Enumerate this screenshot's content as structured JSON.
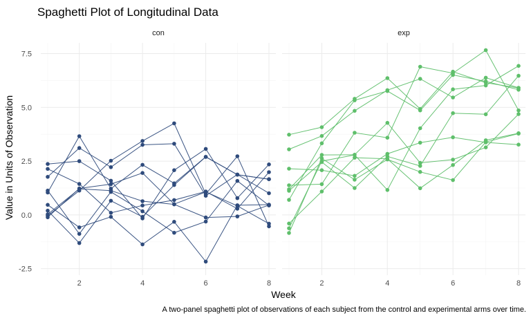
{
  "chart_data": {
    "type": "line",
    "title": "Spaghetti Plot of Longitudinal Data",
    "xlabel": "Week",
    "ylabel": "Value in Units of Observation",
    "caption": "A two-panel spaghetti plot of observations of each subject from the control and experimental arms over time.",
    "x": [
      1,
      2,
      3,
      4,
      5,
      6,
      7,
      8
    ],
    "xlim": [
      1,
      8
    ],
    "ylim": [
      -2.8,
      8
    ],
    "xticks": [
      "2",
      "4",
      "6",
      "8"
    ],
    "yticks": [
      "-2.5",
      "0.0",
      "2.5",
      "5.0",
      "7.5"
    ],
    "grid": true,
    "panels": [
      {
        "label": "con",
        "color": "#2f4b7c",
        "series": [
          {
            "values": [
              0.2,
              -1.31,
              0.66,
              -0.09,
              1.39,
              2.7,
              1.87,
              1.66
            ]
          },
          {
            "values": [
              1.13,
              -0.88,
              1.07,
              0.17,
              -0.83,
              -0.31,
              1.58,
              0.44
            ]
          },
          {
            "values": [
              1.77,
              3.11,
              2.22,
              3.26,
              3.31,
              0.89,
              1.88,
              1.01
            ]
          },
          {
            "values": [
              1.04,
              3.66,
              1.22,
              2.33,
              1.47,
              2.7,
              1.87,
              1.66
            ]
          },
          {
            "values": [
              0.47,
              -0.58,
              -0.09,
              -1.37,
              -0.32,
              -2.17,
              0.45,
              0.48
            ]
          },
          {
            "values": [
              2.37,
              2.5,
              1.59,
              -0.16,
              2.08,
              3.07,
              0.78,
              2.35
            ]
          },
          {
            "values": [
              0.03,
              1.21,
              1.13,
              0.64,
              0.49,
              -0.12,
              -0.07,
              0.46
            ]
          },
          {
            "values": [
              -0.04,
              1.13,
              2.52,
              3.44,
              4.26,
              0.97,
              2.73,
              -0.53
            ]
          },
          {
            "values": [
              2.14,
              1.44,
              0.1,
              0.44,
              0.69,
              1.09,
              0.29,
              1.99
            ]
          },
          {
            "values": [
              -0.11,
              1.23,
              1.43,
              1.95,
              0.5,
              1.07,
              0.42,
              -0.41
            ]
          }
        ]
      },
      {
        "label": "exp",
        "color": "#5fbf6b",
        "series": [
          {
            "values": [
              3.05,
              3.67,
              4.84,
              5.8,
              6.33,
              5.46,
              6.38,
              5.91
            ]
          },
          {
            "values": [
              -0.84,
              2.63,
              1.64,
              2.58,
              2.0,
              1.62,
              3.39,
              3.78
            ]
          },
          {
            "values": [
              2.15,
              2.08,
              1.82,
              2.84,
              3.36,
              3.61,
              3.37,
              3.27
            ]
          },
          {
            "values": [
              -0.62,
              2.5,
              2.79,
              1.16,
              4.03,
              5.84,
              6.02,
              6.93
            ]
          },
          {
            "values": [
              0.7,
              3.33,
              5.33,
              5.76,
              4.86,
              6.51,
              6.21,
              5.82
            ]
          },
          {
            "values": [
              3.73,
              4.08,
              5.4,
              6.36,
              4.93,
              6.66,
              6.15,
              5.9
            ]
          },
          {
            "values": [
              1.12,
              2.46,
              1.25,
              2.72,
              2.28,
              4.73,
              4.68,
              6.47
            ]
          },
          {
            "values": [
              1.19,
              2.79,
              2.8,
              4.28,
              2.42,
              2.57,
              3.14,
              4.69
            ]
          },
          {
            "values": [
              1.38,
              1.43,
              3.82,
              3.59,
              6.89,
              6.59,
              7.66,
              4.86
            ]
          },
          {
            "values": [
              -0.4,
              1.09,
              2.66,
              2.61,
              1.24,
              2.32,
              3.47,
              3.8
            ]
          }
        ]
      }
    ]
  }
}
